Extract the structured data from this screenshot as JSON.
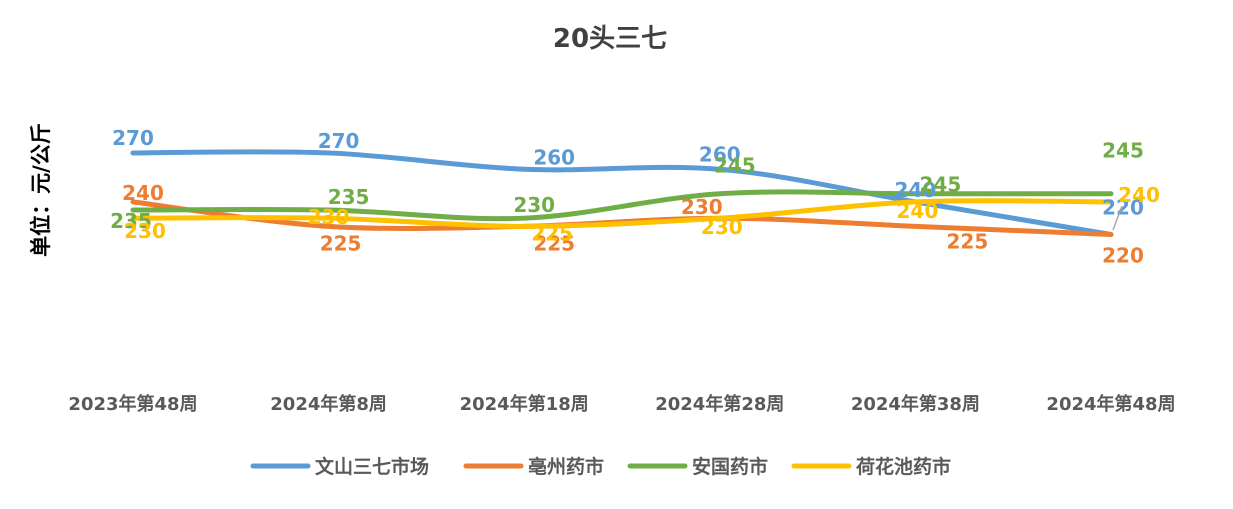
{
  "chart_data": {
    "type": "line",
    "title": "20头三七",
    "ylabel": "单位：元/公斤",
    "xlabel": "",
    "categories": [
      "2023年第48周",
      "2024年第8周",
      "2024年第18周",
      "2024年第28周",
      "2024年第38周",
      "2024年第48周"
    ],
    "ylim": [
      140,
      300
    ],
    "grid": false,
    "legend_position": "bottom",
    "smooth": true,
    "series": [
      {
        "name": "文山三七市场",
        "color": "#5B9BD5",
        "values": [
          270,
          270,
          260,
          260,
          240,
          220
        ]
      },
      {
        "name": "亳州药市",
        "color": "#ED7D31",
        "values": [
          240,
          225,
          225,
          230,
          225,
          220
        ]
      },
      {
        "name": "安国药市",
        "color": "#70AD47",
        "values": [
          235,
          235,
          230,
          245,
          245,
          245
        ]
      },
      {
        "name": "荷花池药市",
        "color": "#FFC000",
        "values": [
          230,
          230,
          225,
          230,
          240,
          240
        ]
      }
    ]
  }
}
